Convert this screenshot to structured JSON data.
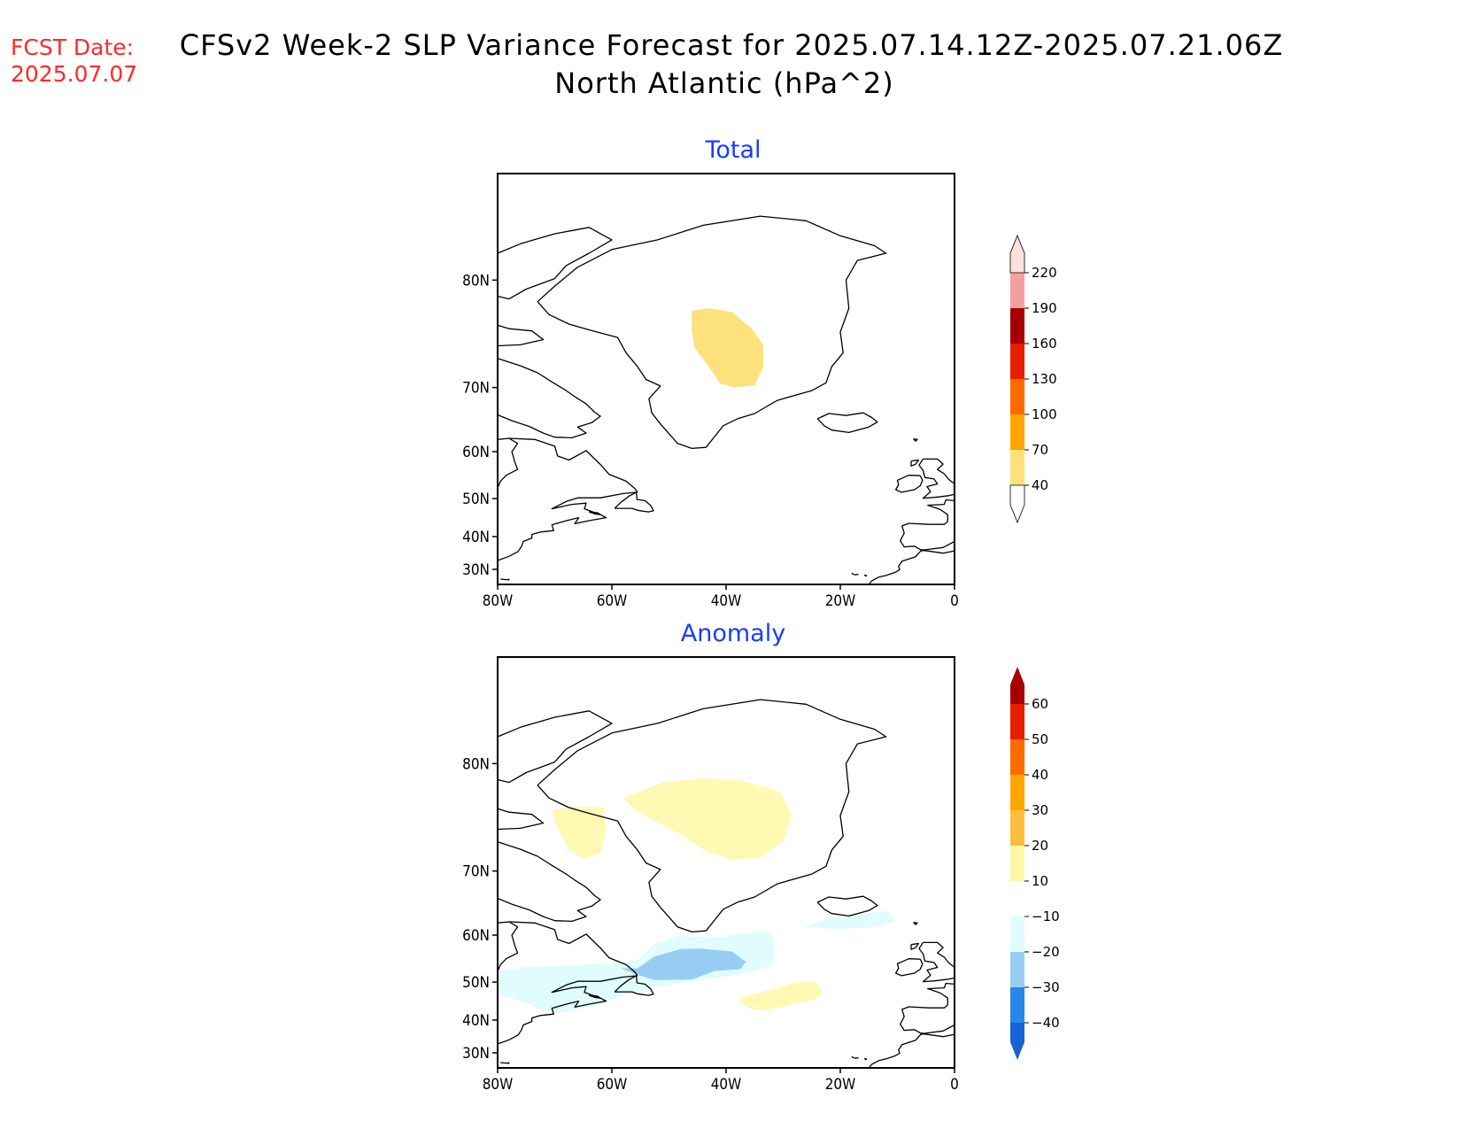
{
  "header": {
    "fcst_label": "FCST Date:",
    "fcst_date": "2025.07.07",
    "title_line1": "CFSv2 Week-2 SLP Variance Forecast for 2025.07.14.12Z-2025.07.21.06Z",
    "title_line2": "North Atlantic (hPa^2)"
  },
  "map_extent": {
    "lon_min": -80,
    "lon_max": 0,
    "lat_min": 25,
    "lat_max": 85
  },
  "axes": {
    "lat_ticks": [
      {
        "value": 80,
        "label": "80N"
      },
      {
        "value": 70,
        "label": "70N"
      },
      {
        "value": 60,
        "label": "60N"
      },
      {
        "value": 50,
        "label": "50N"
      },
      {
        "value": 40,
        "label": "40N"
      },
      {
        "value": 30,
        "label": "30N"
      }
    ],
    "lon_ticks": [
      {
        "value": -80,
        "label": "80W"
      },
      {
        "value": -60,
        "label": "60W"
      },
      {
        "value": -40,
        "label": "40W"
      },
      {
        "value": -20,
        "label": "20W"
      },
      {
        "value": 0,
        "label": "0"
      }
    ]
  },
  "panels": {
    "total": {
      "title": "Total",
      "colorbar": {
        "levels": [
          "40",
          "70",
          "100",
          "130",
          "160",
          "190",
          "220"
        ],
        "colors": [
          "#fde17a",
          "#ffa500",
          "#ff6a00",
          "#e81e00",
          "#a60000",
          "#f4a0a0",
          "#fde0dc"
        ]
      },
      "features": [
        {
          "name": "greenland-high-variance",
          "range": "40-70",
          "color": "#fde17a",
          "polygon": [
            [
              -46,
              77.8
            ],
            [
              -43,
              78
            ],
            [
              -39,
              77.7
            ],
            [
              -35.5,
              76.3
            ],
            [
              -33.5,
              74.8
            ],
            [
              -33.5,
              72.5
            ],
            [
              -35,
              70.3
            ],
            [
              -38.5,
              70
            ],
            [
              -41,
              70.5
            ],
            [
              -43,
              72.5
            ],
            [
              -45.5,
              74.5
            ],
            [
              -46,
              76.2
            ]
          ]
        }
      ]
    },
    "anomaly": {
      "title": "Anomaly",
      "colorbar": {
        "levels": [
          "60",
          "50",
          "40",
          "30",
          "20",
          "10",
          "−10",
          "−20",
          "−30",
          "−40"
        ],
        "colors": [
          "#a60000",
          "#e81e00",
          "#ff6a00",
          "#ffa500",
          "#fdbd3d",
          "#fff6a8",
          "#ffffff",
          "#e0fcfc",
          "#98cdf3",
          "#2a86e8",
          "#1663d6"
        ]
      },
      "features": [
        {
          "name": "anomaly-positive-greenland",
          "range": "10-20",
          "color": "#fff9b3",
          "polygon": [
            [
              -58,
              77.5
            ],
            [
              -51,
              78.7
            ],
            [
              -44,
              79
            ],
            [
              -37,
              78.8
            ],
            [
              -30.5,
              78
            ],
            [
              -28.5,
              76
            ],
            [
              -30,
              73.5
            ],
            [
              -34,
              71.6
            ],
            [
              -39,
              71.4
            ],
            [
              -43.5,
              72.4
            ],
            [
              -48,
              74.2
            ],
            [
              -52,
              75.4
            ],
            [
              -56,
              76.5
            ]
          ]
        },
        {
          "name": "anomaly-positive-baffin",
          "range": "10-20",
          "color": "#fff9b3",
          "polygon": [
            [
              -70.5,
              76.5
            ],
            [
              -66,
              76.8
            ],
            [
              -61.5,
              76.7
            ],
            [
              -61,
              74.5
            ],
            [
              -62,
              72.2
            ],
            [
              -65,
              71.5
            ],
            [
              -67.5,
              72.6
            ],
            [
              -69.5,
              74.8
            ]
          ]
        },
        {
          "name": "anomaly-positive-midatlantic",
          "range": "10-20",
          "color": "#fff9b3",
          "polygon": [
            [
              -37.5,
              46.2
            ],
            [
              -31.5,
              48.3
            ],
            [
              -27.5,
              50
            ],
            [
              -24.5,
              50.2
            ],
            [
              -23,
              47.5
            ],
            [
              -24.5,
              45.7
            ],
            [
              -28,
              44.6
            ],
            [
              -32.5,
              42.8
            ],
            [
              -35.5,
              43
            ],
            [
              -37.5,
              44.8
            ]
          ]
        },
        {
          "name": "anomaly-negative-iceland",
          "range": "-10 to -20",
          "color": "#e0fcfc",
          "polygon": [
            [
              -26.5,
              61.5
            ],
            [
              -22,
              63
            ],
            [
              -16,
              63.8
            ],
            [
              -11.5,
              64.2
            ],
            [
              -10.5,
              62.5
            ],
            [
              -15,
              61.4
            ],
            [
              -21,
              61.1
            ]
          ]
        },
        {
          "name": "anomaly-negative-northwest-atlantic",
          "range": "-10 to -20",
          "color": "#e0fcfc",
          "polygon": [
            [
              -80,
              52.5
            ],
            [
              -75,
              53.5
            ],
            [
              -68,
              53.8
            ],
            [
              -60,
              54.3
            ],
            [
              -55.5,
              55
            ],
            [
              -52.5,
              58.3
            ],
            [
              -48.5,
              59.8
            ],
            [
              -41,
              59.6
            ],
            [
              -34,
              60.8
            ],
            [
              -32,
              60
            ],
            [
              -31.5,
              56.5
            ],
            [
              -32,
              53.7
            ],
            [
              -36,
              52.2
            ],
            [
              -40,
              51.3
            ],
            [
              -46,
              50.4
            ],
            [
              -52,
              48.8
            ],
            [
              -57,
              47.3
            ],
            [
              -60,
              45.6
            ],
            [
              -63,
              44
            ],
            [
              -68,
              42.2
            ],
            [
              -72,
              42.5
            ],
            [
              -74.5,
              44.5
            ],
            [
              -77.5,
              46
            ],
            [
              -80,
              46.8
            ]
          ]
        },
        {
          "name": "anomaly-negative-labrador",
          "range": "-20 to -30",
          "color": "#98cdf3",
          "polygon": [
            [
              -55.5,
              53.2
            ],
            [
              -52.5,
              55.8
            ],
            [
              -48,
              57.3
            ],
            [
              -44.5,
              57.4
            ],
            [
              -39,
              56.8
            ],
            [
              -36.5,
              54.6
            ],
            [
              -37.5,
              53
            ],
            [
              -42,
              52.6
            ],
            [
              -46,
              50.6
            ],
            [
              -52.5,
              50.5
            ],
            [
              -55,
              51.5
            ],
            [
              -58.5,
              53.2
            ]
          ]
        }
      ]
    }
  }
}
